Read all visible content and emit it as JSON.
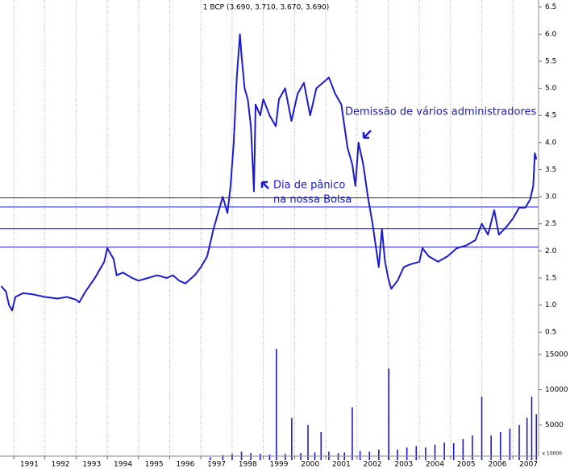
{
  "chart_data": [
    {
      "type": "line",
      "title": "1 BCP (3.690, 3.710, 3.670, 3.690)",
      "annotations": [
        "Demissão de vários administradores",
        "Dia de pânico",
        "na nossa Bolsa"
      ],
      "color": "#1c1ccc",
      "x": [
        1990.6,
        1990.75,
        1990.85,
        1990.95,
        1991.05,
        1991.3,
        1991.6,
        1992.0,
        1992.4,
        1992.7,
        1993.0,
        1993.1,
        1993.3,
        1993.6,
        1993.9,
        1994.0,
        1994.2,
        1994.3,
        1994.5,
        1994.8,
        1995.0,
        1995.3,
        1995.6,
        1995.9,
        1996.1,
        1996.3,
        1996.5,
        1996.8,
        1997.0,
        1997.2,
        1997.4,
        1997.55,
        1997.7,
        1997.85,
        1997.95,
        1998.05,
        1998.15,
        1998.25,
        1998.3,
        1998.4,
        1998.5,
        1998.6,
        1998.7,
        1998.75,
        1998.9,
        1999.0,
        1999.2,
        1999.4,
        1999.5,
        1999.7,
        1999.9,
        2000.1,
        2000.3,
        2000.5,
        2000.7,
        2000.9,
        2001.1,
        2001.3,
        2001.5,
        2001.7,
        2001.85,
        2001.95,
        2002.05,
        2002.2,
        2002.35,
        2002.5,
        2002.6,
        2002.7,
        2002.8,
        2002.9,
        2003.0,
        2003.1,
        2003.3,
        2003.5,
        2003.7,
        2004.0,
        2004.1,
        2004.3,
        2004.6,
        2004.9,
        2005.2,
        2005.5,
        2005.8,
        2006.0,
        2006.2,
        2006.4,
        2006.55,
        2006.8,
        2007.0,
        2007.2,
        2007.4,
        2007.55,
        2007.65,
        2007.7,
        2007.75
      ],
      "values": [
        1.35,
        1.25,
        1.0,
        0.9,
        1.15,
        1.22,
        1.2,
        1.15,
        1.12,
        1.15,
        1.1,
        1.05,
        1.25,
        1.5,
        1.8,
        2.05,
        1.85,
        1.55,
        1.6,
        1.5,
        1.45,
        1.5,
        1.55,
        1.5,
        1.55,
        1.45,
        1.4,
        1.55,
        1.7,
        1.9,
        2.4,
        2.7,
        3.0,
        2.7,
        3.2,
        4.0,
        5.2,
        6.0,
        5.6,
        5.0,
        4.8,
        4.3,
        3.1,
        4.7,
        4.5,
        4.8,
        4.5,
        4.3,
        4.8,
        5.0,
        4.4,
        4.9,
        5.1,
        4.5,
        5.0,
        5.1,
        5.2,
        4.9,
        4.7,
        3.9,
        3.6,
        3.2,
        4.0,
        3.6,
        3.0,
        2.5,
        2.1,
        1.7,
        2.4,
        1.8,
        1.5,
        1.3,
        1.45,
        1.7,
        1.75,
        1.8,
        2.05,
        1.9,
        1.8,
        1.9,
        2.05,
        2.1,
        2.2,
        2.5,
        2.3,
        2.75,
        2.3,
        2.45,
        2.6,
        2.8,
        2.8,
        2.95,
        3.2,
        3.8,
        3.69
      ],
      "hlines": [
        2.98,
        2.81,
        2.41,
        2.07
      ],
      "xlim": [
        1990.56,
        2007.82
      ],
      "xticks": [
        1991,
        1992,
        1993,
        1994,
        1995,
        1996,
        1997,
        1998,
        1999,
        2000,
        2001,
        2002,
        2003,
        2004,
        2005,
        2006,
        2007
      ],
      "ylim": [
        0.31,
        6.63
      ],
      "yticks": [
        {
          "value": 0.5,
          "label": "0.5"
        },
        {
          "value": 1,
          "label": "1.0"
        },
        1.5,
        {
          "value": 2,
          "label": "2.0"
        },
        2.5,
        {
          "value": 3,
          "label": "3.0"
        },
        3.5,
        {
          "value": 4,
          "label": "4.0"
        },
        4.5,
        {
          "value": 5,
          "label": "5.0"
        },
        5.5,
        {
          "value": 6,
          "label": "6.0"
        },
        6.5
      ],
      "grid": true
    },
    {
      "type": "bar",
      "unit_label": "x 10000",
      "color": "#1c1ccc",
      "x": [
        1997.3,
        1997.7,
        1998.0,
        1998.3,
        1998.6,
        1998.9,
        1999.2,
        1999.42,
        1999.7,
        1999.91,
        2000.2,
        2000.43,
        2000.65,
        2000.85,
        2001.1,
        2001.4,
        2001.6,
        2001.85,
        2002.1,
        2002.4,
        2002.7,
        2003.02,
        2003.3,
        2003.6,
        2003.9,
        2004.2,
        2004.5,
        2004.8,
        2005.1,
        2005.4,
        2005.7,
        2006.0,
        2006.3,
        2006.6,
        2006.9,
        2007.2,
        2007.45,
        2007.6,
        2007.75
      ],
      "values": [
        400,
        700,
        900,
        1200,
        1000,
        900,
        800,
        15800,
        900,
        6000,
        1000,
        5000,
        1100,
        4000,
        1200,
        1000,
        1100,
        7500,
        1300,
        1200,
        1500,
        13000,
        1500,
        1800,
        2000,
        1800,
        2200,
        2500,
        2400,
        3000,
        3500,
        9000,
        3500,
        4000,
        4500,
        5000,
        6000,
        9000,
        6500
      ],
      "xlim": [
        1990.56,
        2007.82
      ],
      "ylim": [
        0,
        16700
      ],
      "yticks": [
        5000,
        10000,
        15000
      ]
    }
  ]
}
